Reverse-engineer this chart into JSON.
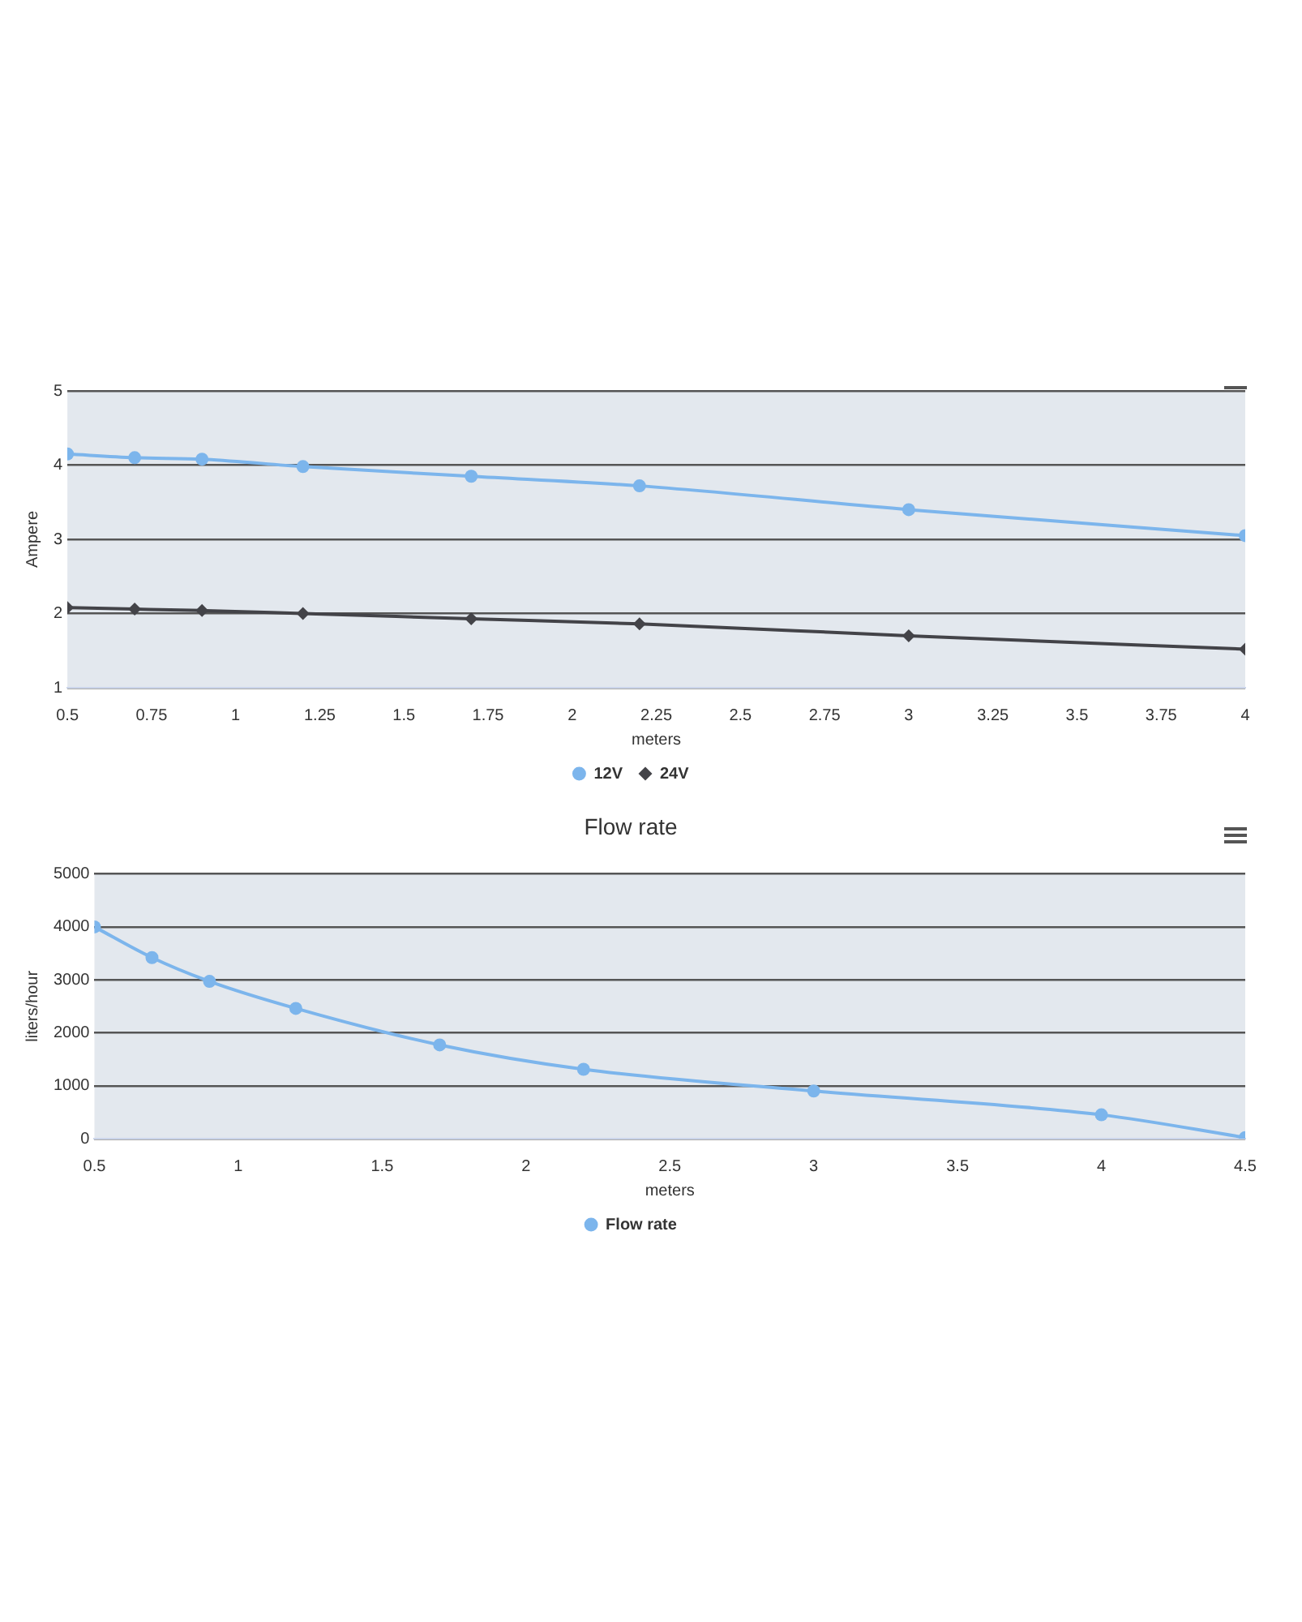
{
  "chart_data": [
    {
      "type": "line",
      "xlabel": "meters",
      "ylabel": "Ampere",
      "xlim": [
        0.5,
        4
      ],
      "xticks": [
        0.5,
        0.75,
        1,
        1.25,
        1.5,
        1.75,
        2,
        2.25,
        2.5,
        2.75,
        3,
        3.25,
        3.5,
        3.75,
        4
      ],
      "ylim": [
        1,
        5
      ],
      "yticks": [
        1,
        2,
        3,
        4,
        5
      ],
      "grid": "y",
      "legend": "bottom",
      "line_style": "solid",
      "x": [
        0.5,
        0.7,
        0.9,
        1.2,
        1.7,
        2.2,
        3,
        4
      ],
      "series": [
        {
          "name": "12V",
          "color": "#7cb5ec",
          "marker": "circle",
          "values": [
            4.15,
            4.1,
            4.08,
            3.98,
            3.85,
            3.72,
            3.4,
            3.05
          ]
        },
        {
          "name": "24V",
          "color": "#434348",
          "marker": "diamond",
          "values": [
            2.08,
            2.06,
            2.04,
            2.0,
            1.93,
            1.86,
            1.7,
            1.52
          ]
        }
      ]
    },
    {
      "type": "line",
      "title": "Flow rate",
      "xlabel": "meters",
      "ylabel": "liters/hour",
      "xlim": [
        0.5,
        4.5
      ],
      "xticks": [
        0.5,
        1,
        1.5,
        2,
        2.5,
        3,
        3.5,
        4,
        4.5
      ],
      "ylim": [
        0,
        5000
      ],
      "yticks": [
        0,
        1000,
        2000,
        3000,
        4000,
        5000
      ],
      "grid": "y",
      "legend": "bottom",
      "line_style": "solid",
      "marker": "circle",
      "x": [
        0.5,
        0.7,
        0.9,
        1.2,
        1.7,
        2.2,
        3,
        4,
        4.5
      ],
      "series": [
        {
          "name": "Flow rate",
          "color": "#7cb5ec",
          "values": [
            4000,
            3420,
            2970,
            2460,
            1770,
            1310,
            900,
            450,
            20
          ]
        }
      ]
    }
  ]
}
